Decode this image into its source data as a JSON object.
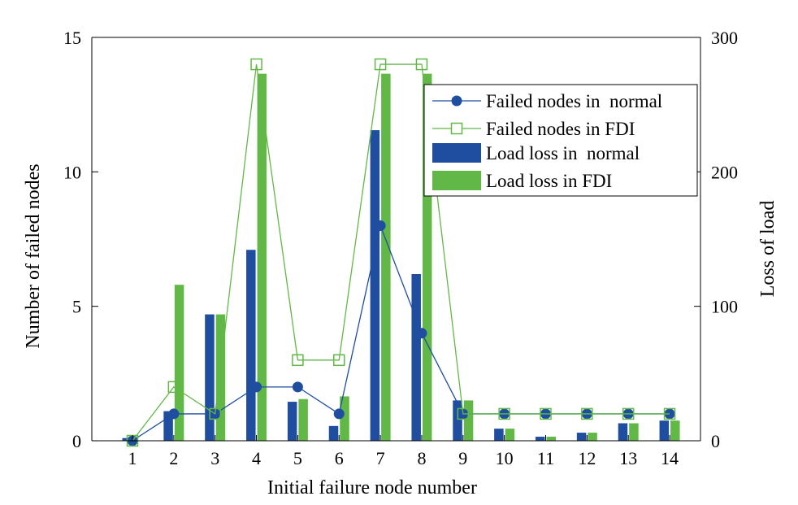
{
  "chart_data": {
    "type": "bar",
    "xlabel": "Initial failure node number",
    "ylabel_left": "Number of failed nodes",
    "ylabel_right": "Loss of load",
    "ylim_left": [
      0,
      15
    ],
    "ylim_right": [
      0,
      300
    ],
    "yticks_left": [
      "0",
      "5",
      "10",
      "15"
    ],
    "yticks_right": [
      "0",
      "100",
      "200",
      "300"
    ],
    "categories": [
      "1",
      "2",
      "3",
      "4",
      "5",
      "6",
      "7",
      "8",
      "9",
      "10",
      "11",
      "12",
      "13",
      "14"
    ],
    "grid": false,
    "legend_position": "top-right",
    "series": [
      {
        "name": "Failed nodes in  normal",
        "kind": "line",
        "axis": "left",
        "marker": "filled-circle",
        "color": "#1f4ea1",
        "values": [
          0,
          1,
          1,
          2,
          2,
          1,
          8,
          4,
          1,
          1,
          1,
          1,
          1,
          1
        ]
      },
      {
        "name": "Failed nodes in FDI",
        "kind": "line",
        "axis": "left",
        "marker": "open-square",
        "color": "#62b846",
        "values": [
          0,
          2,
          1,
          14,
          3,
          3,
          14,
          14,
          1,
          1,
          1,
          1,
          1,
          1
        ]
      },
      {
        "name": "Load loss in  normal",
        "kind": "bar",
        "axis": "right",
        "color": "#1f4ea1",
        "values": [
          2,
          22,
          94,
          142,
          29,
          11,
          231,
          124,
          30,
          9,
          3,
          6,
          13,
          15
        ]
      },
      {
        "name": "Load loss in FDI",
        "kind": "bar",
        "axis": "right",
        "color": "#62b846",
        "values": [
          0,
          116,
          94,
          273,
          31,
          33,
          273,
          273,
          30,
          9,
          3,
          6,
          13,
          15
        ]
      }
    ]
  }
}
